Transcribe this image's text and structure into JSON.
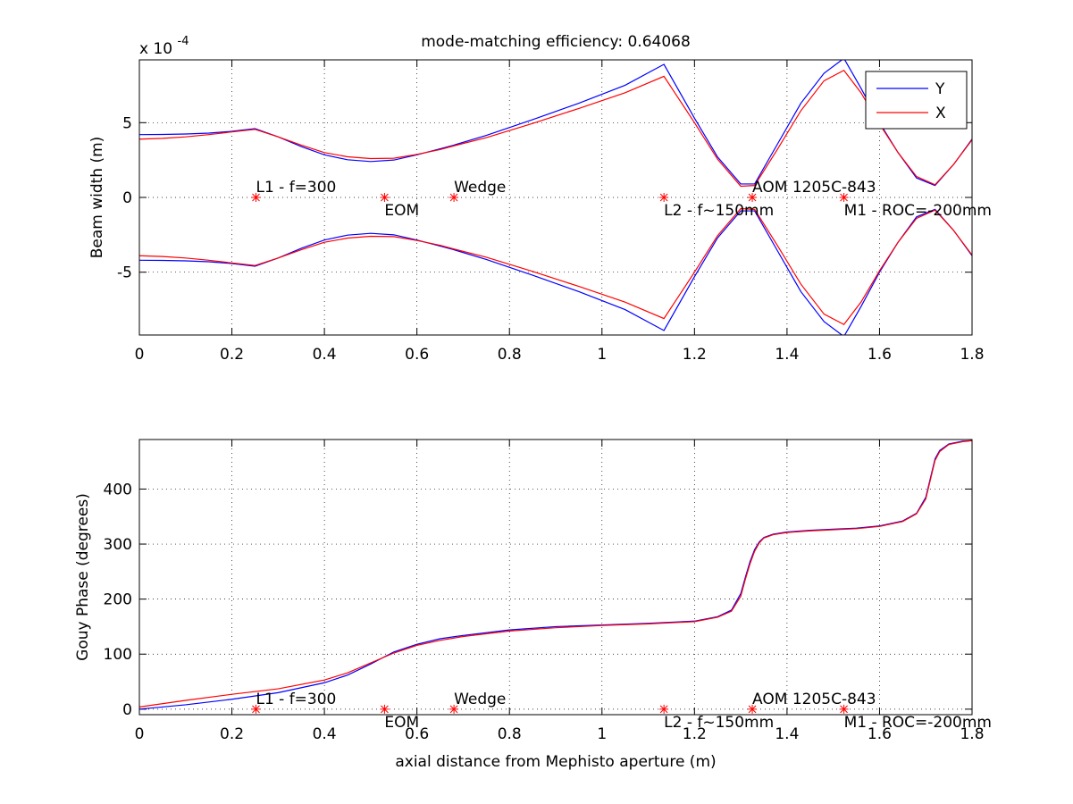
{
  "chart_data": [
    {
      "type": "line",
      "title": "mode-matching efficiency: 0.64068",
      "xlabel": "",
      "ylabel": "Beam width (m)",
      "y_exponent_label": "x 10",
      "y_exponent_power": "-4",
      "y_scale": 0.0001,
      "xlim": [
        0,
        1.8
      ],
      "ylim": [
        -9.2,
        9.2
      ],
      "xticks": [
        0,
        0.2,
        0.4,
        0.6,
        0.8,
        1,
        1.2,
        1.4,
        1.6,
        1.8
      ],
      "xtick_labels": [
        "0",
        "0.2",
        "0.4",
        "0.6",
        "0.8",
        "1",
        "1.2",
        "1.4",
        "1.6",
        "1.8"
      ],
      "yticks": [
        -5,
        0,
        5
      ],
      "ytick_labels": [
        "-5",
        "0",
        "5"
      ],
      "grid": true,
      "legend": {
        "placement": "top-right",
        "entries": [
          "Y",
          "X"
        ]
      },
      "series": [
        {
          "name": "Y",
          "color": "#0000ff",
          "mirrored": true,
          "x": [
            0,
            0.05,
            0.1,
            0.15,
            0.2,
            0.25,
            0.3,
            0.35,
            0.4,
            0.45,
            0.5,
            0.55,
            0.6,
            0.65,
            0.68,
            0.75,
            0.85,
            0.95,
            1.05,
            1.134,
            1.2,
            1.25,
            1.3,
            1.33,
            1.38,
            1.43,
            1.48,
            1.523,
            1.56,
            1.6,
            1.64,
            1.68,
            1.72,
            1.76,
            1.8
          ],
          "values": [
            4.2,
            4.21,
            4.24,
            4.3,
            4.42,
            4.6,
            4.05,
            3.4,
            2.85,
            2.52,
            2.4,
            2.5,
            2.85,
            3.25,
            3.5,
            4.15,
            5.2,
            6.3,
            7.5,
            8.9,
            5.3,
            2.7,
            0.9,
            0.9,
            3.6,
            6.3,
            8.3,
            9.3,
            7.3,
            5.0,
            3.0,
            1.3,
            0.8,
            2.2,
            3.9
          ]
        },
        {
          "name": "X",
          "color": "#ff0000",
          "mirrored": true,
          "x": [
            0,
            0.05,
            0.1,
            0.15,
            0.2,
            0.25,
            0.3,
            0.35,
            0.4,
            0.45,
            0.5,
            0.55,
            0.6,
            0.65,
            0.68,
            0.75,
            0.85,
            0.95,
            1.05,
            1.134,
            1.2,
            1.25,
            1.3,
            1.33,
            1.38,
            1.43,
            1.48,
            1.523,
            1.56,
            1.6,
            1.64,
            1.68,
            1.72,
            1.76,
            1.8
          ],
          "values": [
            3.9,
            3.95,
            4.05,
            4.2,
            4.38,
            4.55,
            4.05,
            3.5,
            3.0,
            2.72,
            2.6,
            2.62,
            2.88,
            3.2,
            3.45,
            4.0,
            4.95,
            5.95,
            7.0,
            8.1,
            5.0,
            2.55,
            0.75,
            0.8,
            3.25,
            5.8,
            7.8,
            8.5,
            7.0,
            4.9,
            3.0,
            1.4,
            0.85,
            2.2,
            3.85
          ]
        }
      ],
      "components": [
        {
          "x": 0.252,
          "label": "L1 - f=300",
          "label_pos": "above"
        },
        {
          "x": 0.53,
          "label": "EOM",
          "label_pos": "below"
        },
        {
          "x": 0.68,
          "label": "Wedge",
          "label_pos": "above"
        },
        {
          "x": 1.134,
          "label": "L2 - f~150mm",
          "label_pos": "below"
        },
        {
          "x": 1.325,
          "label": "AOM 1205C-843",
          "label_pos": "above"
        },
        {
          "x": 1.523,
          "label": "M1 - ROC=-200mm",
          "label_pos": "below"
        }
      ]
    },
    {
      "type": "line",
      "title": "",
      "xlabel": "axial distance from Mephisto aperture (m)",
      "ylabel": "Gouy Phase (degrees)",
      "xlim": [
        0,
        1.8
      ],
      "ylim": [
        -10,
        490
      ],
      "xticks": [
        0,
        0.2,
        0.4,
        0.6,
        0.8,
        1,
        1.2,
        1.4,
        1.6,
        1.8
      ],
      "xtick_labels": [
        "0",
        "0.2",
        "0.4",
        "0.6",
        "0.8",
        "1",
        "1.2",
        "1.4",
        "1.6",
        "1.8"
      ],
      "yticks": [
        0,
        100,
        200,
        300,
        400
      ],
      "ytick_labels": [
        "0",
        "100",
        "200",
        "300",
        "400"
      ],
      "grid": true,
      "series": [
        {
          "color": "#0000ff",
          "x": [
            0,
            0.1,
            0.2,
            0.3,
            0.4,
            0.45,
            0.5,
            0.55,
            0.6,
            0.65,
            0.7,
            0.8,
            0.9,
            1.0,
            1.1,
            1.2,
            1.25,
            1.28,
            1.3,
            1.31,
            1.32,
            1.33,
            1.34,
            1.35,
            1.37,
            1.4,
            1.45,
            1.5,
            1.55,
            1.6,
            1.65,
            1.68,
            1.7,
            1.71,
            1.72,
            1.73,
            1.75,
            1.78,
            1.8
          ],
          "values": [
            0,
            8,
            18,
            30,
            48,
            62,
            82,
            104,
            118,
            128,
            134,
            144,
            150,
            153,
            156,
            160,
            168,
            180,
            210,
            240,
            268,
            290,
            304,
            312,
            318,
            322,
            325,
            327,
            329,
            333,
            342,
            356,
            385,
            420,
            455,
            470,
            482,
            487,
            488
          ]
        },
        {
          "color": "#ff0000",
          "x": [
            0,
            0.1,
            0.2,
            0.3,
            0.4,
            0.45,
            0.5,
            0.55,
            0.6,
            0.65,
            0.7,
            0.8,
            0.9,
            1.0,
            1.1,
            1.2,
            1.25,
            1.28,
            1.3,
            1.31,
            1.32,
            1.33,
            1.34,
            1.35,
            1.37,
            1.4,
            1.45,
            1.5,
            1.55,
            1.6,
            1.65,
            1.68,
            1.7,
            1.71,
            1.72,
            1.73,
            1.75,
            1.78,
            1.8
          ],
          "values": [
            4,
            16,
            27,
            37,
            53,
            66,
            84,
            102,
            116,
            125,
            132,
            142,
            148,
            152,
            155,
            159,
            167,
            178,
            205,
            236,
            264,
            287,
            302,
            311,
            317,
            321,
            324,
            326,
            328,
            332,
            341,
            355,
            382,
            417,
            452,
            468,
            481,
            486,
            488
          ]
        }
      ],
      "components": [
        {
          "x": 0.252,
          "label": "L1 - f=300",
          "label_pos": "above"
        },
        {
          "x": 0.53,
          "label": "EOM",
          "label_pos": "below"
        },
        {
          "x": 0.68,
          "label": "Wedge",
          "label_pos": "above"
        },
        {
          "x": 1.134,
          "label": "L2 - f~150mm",
          "label_pos": "below"
        },
        {
          "x": 1.325,
          "label": "AOM 1205C-843",
          "label_pos": "above"
        },
        {
          "x": 1.523,
          "label": "M1 - ROC=-200mm",
          "label_pos": "below"
        }
      ]
    }
  ]
}
